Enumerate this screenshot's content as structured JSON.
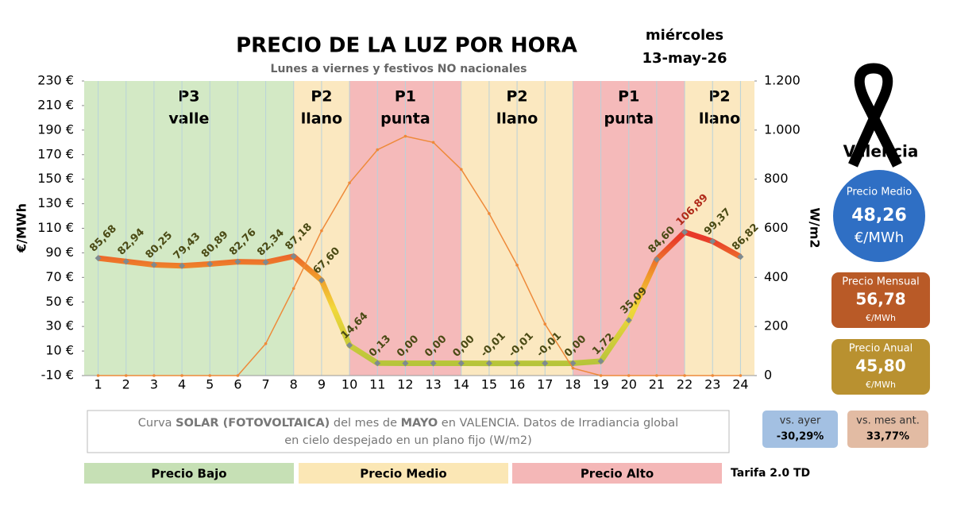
{
  "chart_data": {
    "type": "line",
    "title": "PRECIO DE LA LUZ POR HORA",
    "subtitle": "Lunes a viernes y festivos NO nacionales",
    "categories": [
      "1",
      "2",
      "3",
      "4",
      "5",
      "6",
      "7",
      "8",
      "9",
      "10",
      "11",
      "12",
      "13",
      "14",
      "15",
      "16",
      "17",
      "18",
      "19",
      "20",
      "21",
      "22",
      "23",
      "24"
    ],
    "series": [
      {
        "color": "#f2b830",
        "values": [
          85.68,
          82.94,
          80.25,
          79.43,
          80.89,
          82.76,
          82.34,
          87.18,
          67.6,
          14.64,
          0.13,
          0.0,
          0.0,
          0.0,
          -0.01,
          -0.01,
          -0.01,
          0.0,
          1.72,
          35.09,
          84.6,
          106.89,
          99.37,
          86.82
        ],
        "value_labels": [
          "85,68",
          "82,94",
          "80,25",
          "79,43",
          "80,89",
          "82,76",
          "82,34",
          "87,18",
          "67,60",
          "14,64",
          "0,13",
          "0,00",
          "0,00",
          "0,00",
          "-0,01",
          "-0,01",
          "-0,01",
          "0,00",
          "1,72",
          "35,09",
          "84,60",
          "106,89",
          "99,37",
          "86,82"
        ]
      },
      {
        "axis": "y2",
        "color": "#ee8a3a",
        "values": [
          0,
          0,
          0,
          0,
          0,
          0,
          130,
          355,
          590,
          785,
          920,
          975,
          950,
          840,
          660,
          450,
          210,
          30,
          0,
          0,
          0,
          0,
          0,
          0
        ]
      }
    ],
    "ylabel": "€/MWh",
    "y2label": "W/m2",
    "ylim": [
      -10,
      230
    ],
    "yticks": [
      {
        "value": -10,
        "label": "-10 €"
      },
      {
        "value": 10,
        "label": "10 €"
      },
      {
        "value": 30,
        "label": "30 €"
      },
      {
        "value": 50,
        "label": "50 €"
      },
      {
        "value": 70,
        "label": "70 €"
      },
      {
        "value": 90,
        "label": "90 €"
      },
      {
        "value": 110,
        "label": "110 €"
      },
      {
        "value": 130,
        "label": "130 €"
      },
      {
        "value": 150,
        "label": "150 €"
      },
      {
        "value": 170,
        "label": "170 €"
      },
      {
        "value": 190,
        "label": "190 €"
      },
      {
        "value": 210,
        "label": "210 €"
      },
      {
        "value": 230,
        "label": "230 €"
      }
    ],
    "y2lim": [
      0,
      1200
    ],
    "y2ticks": [
      0,
      200,
      400,
      600,
      800,
      {
        "value": 1000,
        "label": "1.000"
      },
      {
        "value": 1200,
        "label": "1.200"
      }
    ],
    "periods": [
      {
        "code": "P3",
        "name": "valle",
        "from": null,
        "to": 8,
        "color": "#d3e9c5"
      },
      {
        "code": "P2",
        "name": "llano",
        "from": 8,
        "to": 10,
        "color": "#fbe8c0"
      },
      {
        "code": "P1",
        "name": "punta",
        "from": 10,
        "to": 14,
        "color": "#f5baba"
      },
      {
        "code": "P2",
        "name": "llano",
        "from": 14,
        "to": 18,
        "color": "#fbe8c0"
      },
      {
        "code": "P1",
        "name": "punta",
        "from": 18,
        "to": 22,
        "color": "#f5baba"
      },
      {
        "code": "P2",
        "name": "llano",
        "from": 22,
        "to": null,
        "color": "#fbe8c0"
      }
    ],
    "legend": [
      {
        "label": "Precio Bajo",
        "color": "#c6e0b5"
      },
      {
        "label": "Precio Medio",
        "color": "#fbe7b5"
      },
      {
        "label": "Precio Alto",
        "color": "#f4b7b7"
      }
    ],
    "tariff": "Tarifa 2.0 TD"
  },
  "date": {
    "weekday": "miércoles",
    "day": "13-may-26"
  },
  "city": "Valencia",
  "cards": [
    {
      "title": "Precio Medio",
      "value": "48,26",
      "unit": "€/MWh",
      "color": "#2f6fc4"
    },
    {
      "title": "Precio Mensual",
      "value": "56,78",
      "unit": "€/MWh",
      "color": "#b95a27"
    },
    {
      "title": "Precio Anual",
      "value": "45,80",
      "unit": "€/MWh",
      "color": "#b99130"
    }
  ],
  "comparisons": [
    {
      "label": "vs. ayer",
      "value": "-30,29%",
      "color": "#a3c0e2"
    },
    {
      "label": "vs. mes ant.",
      "value": "33,77%",
      "color": "#e2bba3"
    }
  ],
  "note": [
    "Curva ",
    "SOLAR (FOTOVOLTAICA)",
    " del mes de ",
    "MAYO",
    " en VALENCIA. Datos de Irradiancia global en cielo despejado en un plano fijo (W/m2)"
  ]
}
